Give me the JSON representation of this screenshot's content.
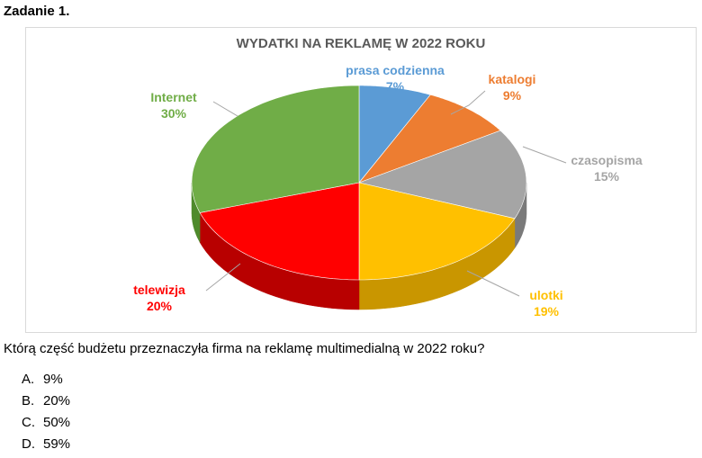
{
  "task": {
    "title": "Zadanie 1."
  },
  "question": "Którą część budżetu przeznaczyła firma na reklamę multimedialną w 2022 roku?",
  "answers": [
    {
      "letter": "A.",
      "text": "9%"
    },
    {
      "letter": "B.",
      "text": "20%"
    },
    {
      "letter": "C.",
      "text": "50%"
    },
    {
      "letter": "D.",
      "text": "59%"
    }
  ],
  "chart_data": {
    "type": "pie",
    "title": "WYDATKI NA REKLAMĘ W 2022 ROKU",
    "slices": [
      {
        "label": "prasa codzienna",
        "value": 7,
        "value_label": "7%",
        "color": "#5b9bd5",
        "side_color": "#3f79b0"
      },
      {
        "label": "katalogi",
        "value": 9,
        "value_label": "9%",
        "color": "#ed7d31",
        "side_color": "#b85a1c"
      },
      {
        "label": "czasopisma",
        "value": 15,
        "value_label": "15%",
        "color": "#a5a5a5",
        "side_color": "#7a7a7a"
      },
      {
        "label": "ulotki",
        "value": 19,
        "value_label": "19%",
        "color": "#ffc000",
        "side_color": "#c99600"
      },
      {
        "label": "telewizja",
        "value": 20,
        "value_label": "20%",
        "color": "#ff0000",
        "side_color": "#b80000"
      },
      {
        "label": "Internet",
        "value": 30,
        "value_label": "30%",
        "color": "#70ad47",
        "side_color": "#4e8a2c"
      }
    ],
    "style": "3d-pie",
    "legend": "none",
    "data_labels": "outside-with-leader-lines"
  }
}
